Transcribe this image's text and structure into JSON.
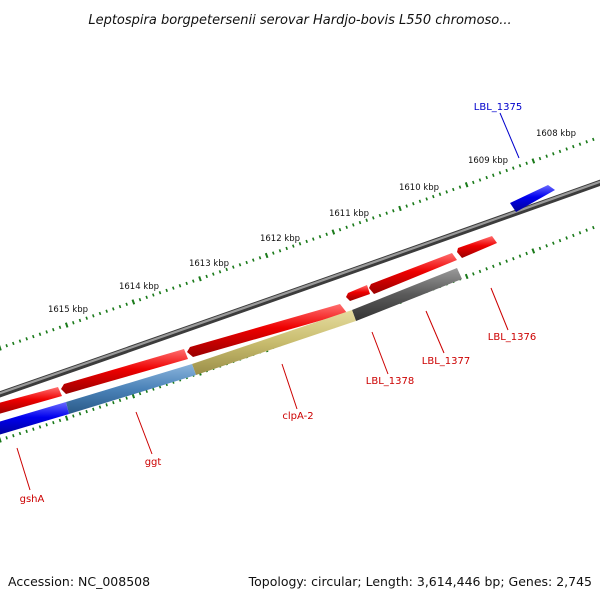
{
  "title": "Leptospira borgpetersenii serovar Hardjo-bovis L550 chromoso...",
  "footer": {
    "accession": "Accession: NC_008508",
    "summary": "Topology: circular; Length: 3,614,446 bp; Genes: 2,745"
  },
  "ticks": [
    "1608 kbp",
    "1609 kbp",
    "1610 kbp",
    "1611 kbp",
    "1612 kbp",
    "1613 kbp",
    "1614 kbp",
    "1615 kbp"
  ],
  "genes": [
    {
      "label": "LBL_1375",
      "color": "#0000cc"
    },
    {
      "label": "LBL_1376",
      "color": "#cc0000"
    },
    {
      "label": "LBL_1377",
      "color": "#cc0000"
    },
    {
      "label": "LBL_1378",
      "color": "#cc0000"
    },
    {
      "label": "clpA-2",
      "color": "#cc0000"
    },
    {
      "label": "ggt",
      "color": "#cc0000"
    },
    {
      "label": "gshA",
      "color": "#cc0000"
    }
  ],
  "colors": {
    "backbone": "#808080",
    "forward_cds": "#dd0000",
    "reverse_cds": "#dd0000",
    "forward_gene": "#0000ee",
    "reverse_gene_blue": "#0000ee",
    "gray_feature": "#555555",
    "khaki_feature": "#c8bc6e",
    "steel_feature": "#4a82b8",
    "tick_green": "#1a7a1a"
  }
}
